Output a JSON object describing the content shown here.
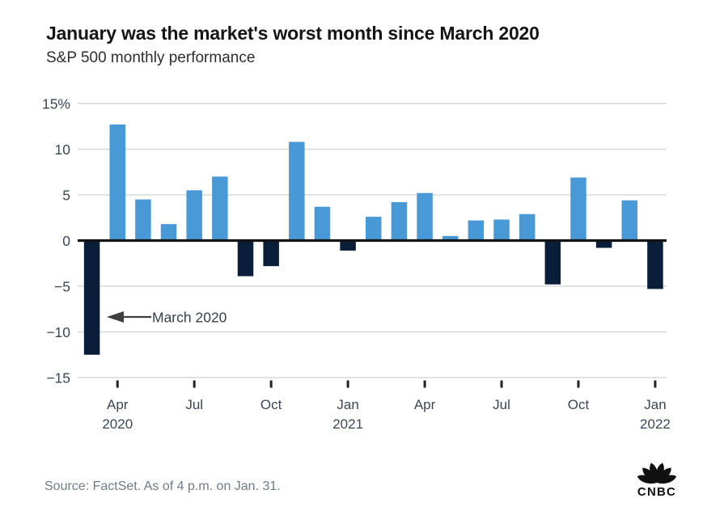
{
  "header": {
    "title": "January was the market's worst month since March 2020",
    "subtitle": "S&P 500 monthly performance"
  },
  "chart_data": {
    "type": "bar",
    "title": "S&P 500 monthly performance",
    "categories": [
      "Mar 2020",
      "Apr 2020",
      "May 2020",
      "Jun 2020",
      "Jul 2020",
      "Aug 2020",
      "Sep 2020",
      "Oct 2020",
      "Nov 2020",
      "Dec 2020",
      "Jan 2021",
      "Feb 2021",
      "Mar 2021",
      "Apr 2021",
      "May 2021",
      "Jun 2021",
      "Jul 2021",
      "Aug 2021",
      "Sep 2021",
      "Oct 2021",
      "Nov 2021",
      "Dec 2021",
      "Jan 2022"
    ],
    "values": [
      -12.5,
      12.7,
      4.5,
      1.8,
      5.5,
      7.0,
      -3.9,
      -2.8,
      10.8,
      3.7,
      -1.1,
      2.6,
      4.2,
      5.2,
      0.5,
      2.2,
      2.3,
      2.9,
      -4.8,
      6.9,
      -0.8,
      4.4,
      -5.3
    ],
    "ylabel": "",
    "xlabel": "",
    "ylim": [
      -15,
      15
    ],
    "grid": true,
    "legend_position": "none",
    "y_ticks": [
      {
        "label": "15%",
        "value": 15
      },
      {
        "label": "10",
        "value": 10
      },
      {
        "label": "5",
        "value": 5
      },
      {
        "label": "0",
        "value": 0
      },
      {
        "label": "−5",
        "value": -5
      },
      {
        "label": "−10",
        "value": -10
      },
      {
        "label": "−15",
        "value": -15
      }
    ],
    "x_ticks": [
      {
        "index": 1,
        "month": "Apr",
        "year": "2020"
      },
      {
        "index": 4,
        "month": "Jul",
        "year": ""
      },
      {
        "index": 7,
        "month": "Oct",
        "year": ""
      },
      {
        "index": 10,
        "month": "Jan",
        "year": "2021"
      },
      {
        "index": 13,
        "month": "Apr",
        "year": ""
      },
      {
        "index": 16,
        "month": "Jul",
        "year": ""
      },
      {
        "index": 19,
        "month": "Oct",
        "year": ""
      },
      {
        "index": 22,
        "month": "Jan",
        "year": "2022"
      }
    ],
    "colors": {
      "positive": "#4899D6",
      "negative": "#0A1E3A",
      "grid": "#D8D8D8",
      "axis": "#141414",
      "tick_mark": "#222222",
      "label": "#3A4754"
    }
  },
  "annotation": {
    "text": "March 2020",
    "text_color": "#333F4B",
    "arrow_color": "#3F3F3F"
  },
  "footer": {
    "source": "Source: FactSet. As of 4 p.m. on Jan. 31."
  },
  "logo": {
    "text": "CNBC",
    "color": "#111111"
  }
}
